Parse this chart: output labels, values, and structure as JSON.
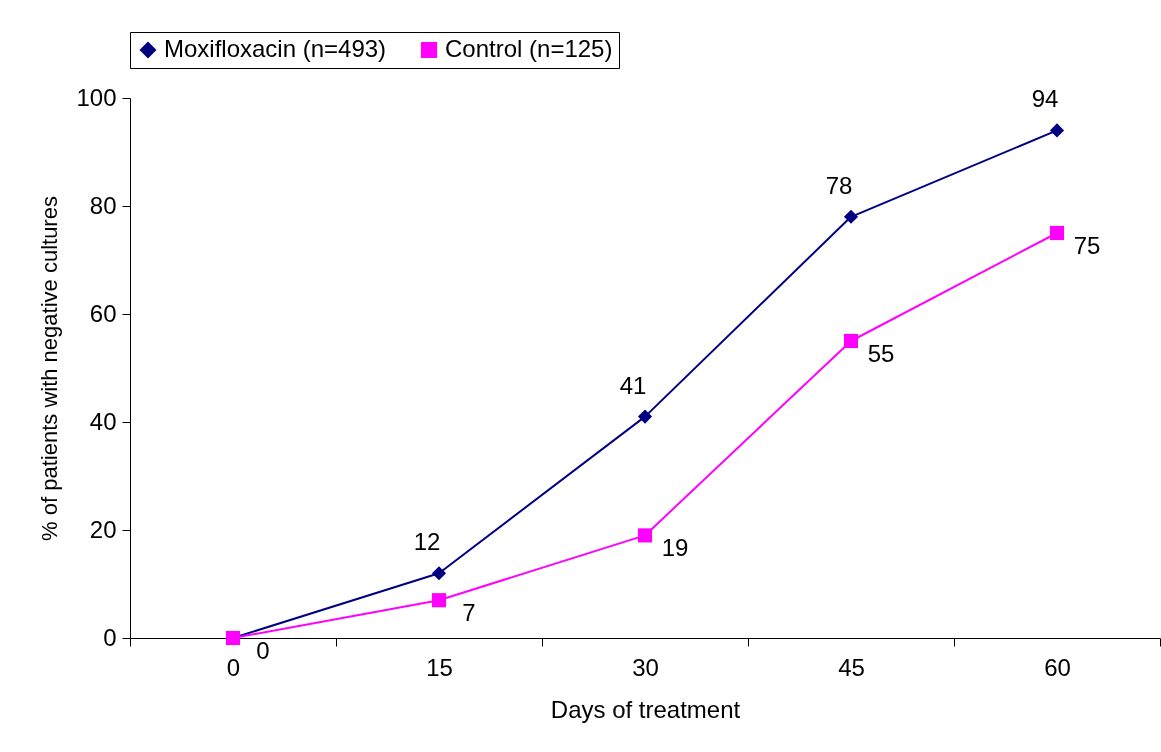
{
  "chart_data": {
    "type": "line",
    "xlabel": "Days of treatment",
    "ylabel": "% of patients with negative cultures",
    "categories": [
      "0",
      "15",
      "30",
      "45",
      "60"
    ],
    "series": [
      {
        "name": "Moxifloxacin (n=493)",
        "color": "#000080",
        "marker": "diamond",
        "values": [
          0,
          12,
          41,
          78,
          94
        ],
        "value_labels": [
          null,
          "12",
          "41",
          "78",
          "94"
        ]
      },
      {
        "name": "Control (n=125)",
        "color": "#ff00ff",
        "marker": "square",
        "values": [
          0,
          7,
          19,
          55,
          75
        ],
        "value_labels": [
          "0",
          "7",
          "19",
          "55",
          "75"
        ]
      }
    ],
    "ylim": [
      0,
      100
    ],
    "yticks": [
      0,
      20,
      40,
      60,
      80,
      100
    ],
    "grid": false,
    "legend": "top"
  }
}
